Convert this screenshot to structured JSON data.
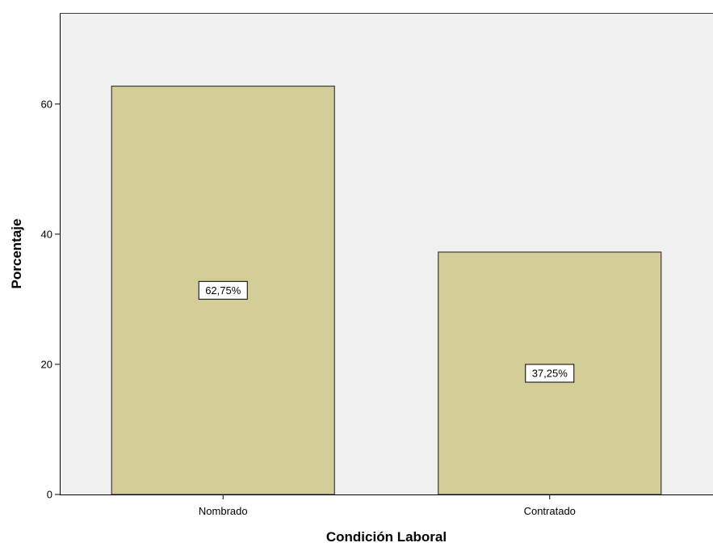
{
  "chart_data": {
    "type": "bar",
    "title": "",
    "xlabel": "Condición Laboral",
    "ylabel": "Porcentaje",
    "categories": [
      "Nombrado",
      "Contratado"
    ],
    "values": [
      62.75,
      37.25
    ],
    "data_labels": [
      "62,75%",
      "37,25%"
    ],
    "yticks": [
      0,
      20,
      40,
      60
    ],
    "ylim": [
      0,
      74
    ],
    "grid": false,
    "legend": "none",
    "colors": {
      "plot_background": "#f0f0f0",
      "bar_fill": "#d3ce98",
      "bar_stroke": "#3c3c3c",
      "label_box": "#ffffff"
    }
  }
}
